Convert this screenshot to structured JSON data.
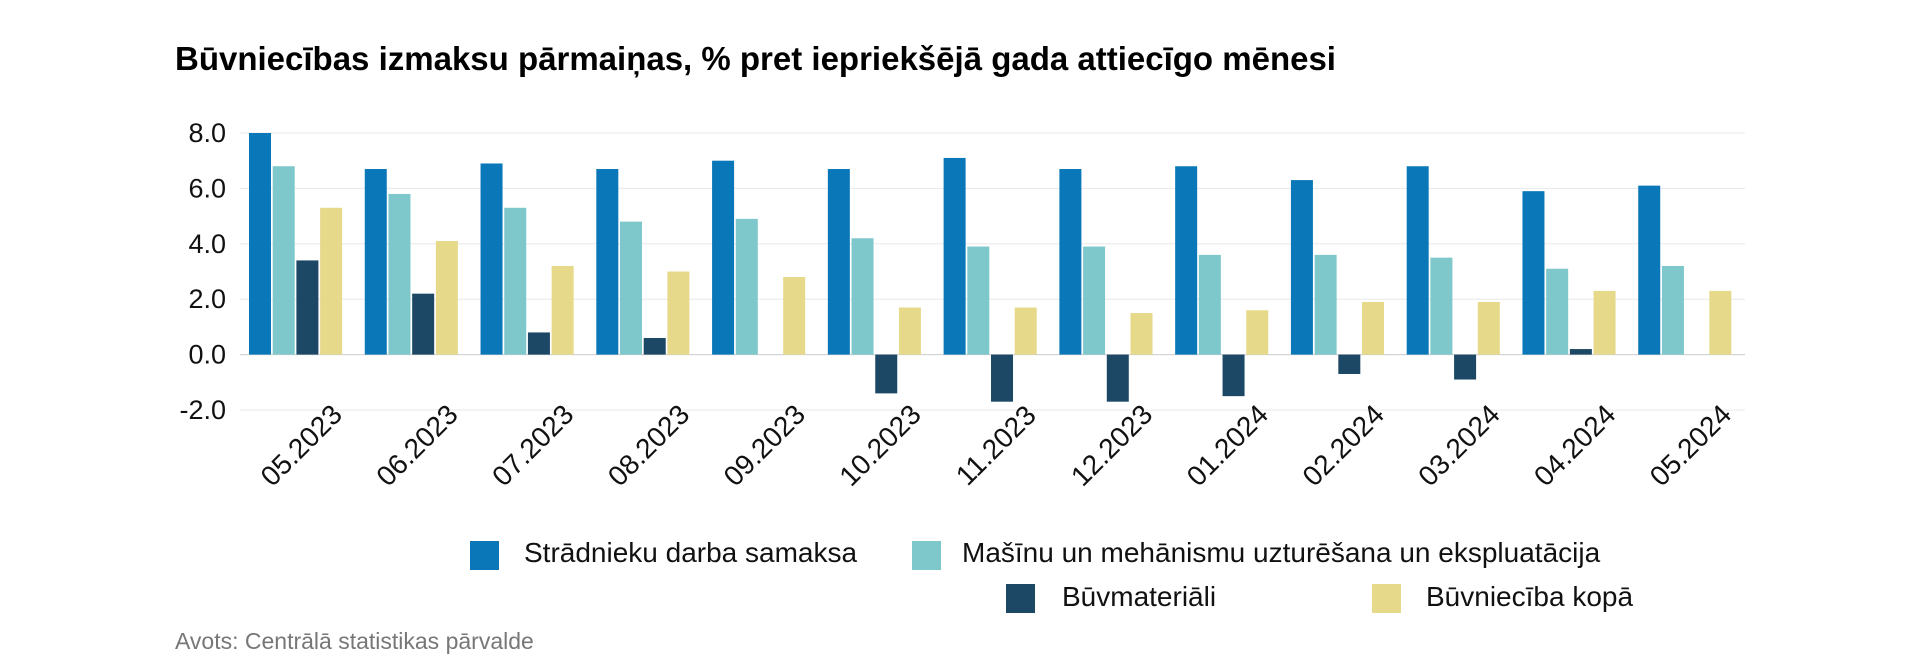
{
  "chart_data": {
    "type": "bar",
    "title": "Būvniecības izmaksu pārmaiņas, % pret iepriekšējā gada attiecīgo mēnesi",
    "xlabel": "",
    "ylabel": "",
    "ylim": [
      -2.0,
      8.0
    ],
    "yticks": [
      "8.0",
      "6.0",
      "4.0",
      "2.0",
      "0.0",
      "-2.0"
    ],
    "ytick_values": [
      8,
      6,
      4,
      2,
      0,
      -2
    ],
    "categories": [
      "05.2023",
      "06.2023",
      "07.2023",
      "08.2023",
      "09.2023",
      "10.2023",
      "11.2023",
      "12.2023",
      "01.2024",
      "02.2024",
      "03.2024",
      "04.2024",
      "05.2024"
    ],
    "series": [
      {
        "name": "Strādnieku darba samaksa",
        "color": "#0a78b8",
        "values": [
          8.0,
          6.7,
          6.9,
          6.7,
          7.0,
          6.7,
          7.1,
          6.7,
          6.8,
          6.3,
          6.8,
          5.9,
          6.1
        ]
      },
      {
        "name": "Mašīnu un mehānismu uzturēšana un ekspluatācija",
        "color": "#7ec8cc",
        "values": [
          6.8,
          5.8,
          5.3,
          4.8,
          4.9,
          4.2,
          3.9,
          3.9,
          3.6,
          3.6,
          3.5,
          3.1,
          3.2
        ]
      },
      {
        "name": "Būvmateriāli",
        "color": "#1c4866",
        "values": [
          3.4,
          2.2,
          0.8,
          0.6,
          0.0,
          -1.4,
          -1.7,
          -1.7,
          -1.5,
          -0.7,
          -0.9,
          0.2,
          0.0
        ]
      },
      {
        "name": "Būvniecība kopā",
        "color": "#e6d98a",
        "values": [
          5.3,
          4.1,
          3.2,
          3.0,
          2.8,
          1.7,
          1.7,
          1.5,
          1.6,
          1.9,
          1.9,
          2.3,
          2.3
        ]
      }
    ],
    "legend_position": "bottom",
    "grid": true
  },
  "source": "Avots: Centrālā statistikas pārvalde"
}
